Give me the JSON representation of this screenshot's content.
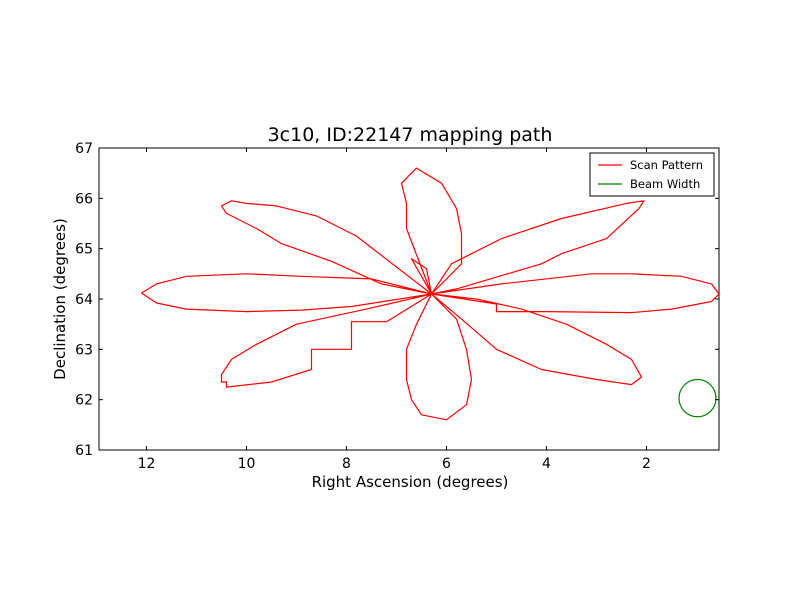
{
  "chart_data": {
    "type": "line",
    "title": "3c10, ID:22147 mapping path",
    "xlabel": "Right Ascension (degrees)",
    "ylabel": "Declination (degrees)",
    "xlim": [
      12.95,
      0.55
    ],
    "ylim": [
      61,
      67
    ],
    "x_inverted": true,
    "grid": false,
    "legend_position": "top-right",
    "xticks": [
      12,
      10,
      8,
      6,
      4,
      2
    ],
    "yticks": [
      61,
      62,
      63,
      64,
      65,
      66,
      67
    ],
    "series": [
      {
        "name": "Scan Pattern",
        "color": "#ff0000",
        "x": [
          6.3,
          5.9,
          4.9,
          3.7,
          2.4,
          2.05,
          2.15,
          2.8,
          3.7,
          4.1,
          5.8,
          6.3,
          5.7,
          5.7,
          5.8,
          6.1,
          6.6,
          6.9,
          6.8,
          6.8,
          6.3,
          7.6,
          9.0,
          9.8,
          10.3,
          10.5,
          10.5,
          10.4,
          10.4,
          9.5,
          8.7,
          8.7,
          7.9,
          7.9,
          7.2,
          6.3,
          5.7,
          5.0,
          4.1,
          3.0,
          2.3,
          2.1,
          2.3,
          2.8,
          3.6,
          4.5,
          5.4,
          6.3,
          6.6,
          6.8,
          6.8,
          6.7,
          6.5,
          6.0,
          5.6,
          5.5,
          5.6,
          5.8,
          6.3,
          5.0,
          5.0,
          4.0,
          2.3,
          1.5,
          0.7,
          0.55,
          0.7,
          1.3,
          2.3,
          3.1,
          4.9,
          6.3,
          7.5,
          8.9,
          10.0,
          11.2,
          11.8,
          12.1,
          11.8,
          11.2,
          10.0,
          8.9,
          7.9,
          6.3,
          6.4,
          6.7,
          6.3,
          7.3,
          8.3,
          9.3,
          9.8,
          10.4,
          10.5,
          10.3,
          10.0,
          9.4,
          8.6,
          7.8,
          6.3
        ],
        "y": [
          64.1,
          64.7,
          65.2,
          65.6,
          65.9,
          65.95,
          65.8,
          65.2,
          64.9,
          64.7,
          64.2,
          64.1,
          64.7,
          65.3,
          65.8,
          66.3,
          66.6,
          66.3,
          65.9,
          65.4,
          64.1,
          63.8,
          63.5,
          63.1,
          62.8,
          62.5,
          62.35,
          62.35,
          62.25,
          62.35,
          62.6,
          63.0,
          63.0,
          63.55,
          63.55,
          64.1,
          63.6,
          63.0,
          62.6,
          62.4,
          62.3,
          62.45,
          62.8,
          63.1,
          63.5,
          63.8,
          64.0,
          64.1,
          63.5,
          63.0,
          62.4,
          62.0,
          61.7,
          61.6,
          61.9,
          62.4,
          63.0,
          63.6,
          64.1,
          63.9,
          63.75,
          63.75,
          63.73,
          63.8,
          63.95,
          64.1,
          64.3,
          64.45,
          64.5,
          64.5,
          64.3,
          64.1,
          64.4,
          64.45,
          64.5,
          64.45,
          64.3,
          64.12,
          63.92,
          63.8,
          63.75,
          63.78,
          63.85,
          64.1,
          64.6,
          64.8,
          64.1,
          64.3,
          64.75,
          65.1,
          65.4,
          65.7,
          65.85,
          65.95,
          65.9,
          65.85,
          65.65,
          65.25,
          64.1
        ]
      },
      {
        "name": "Beam Width",
        "color": "#008000",
        "circle": {
          "center_x": 0.98,
          "center_y": 62.03,
          "radius_deg": 0.37
        }
      }
    ]
  }
}
